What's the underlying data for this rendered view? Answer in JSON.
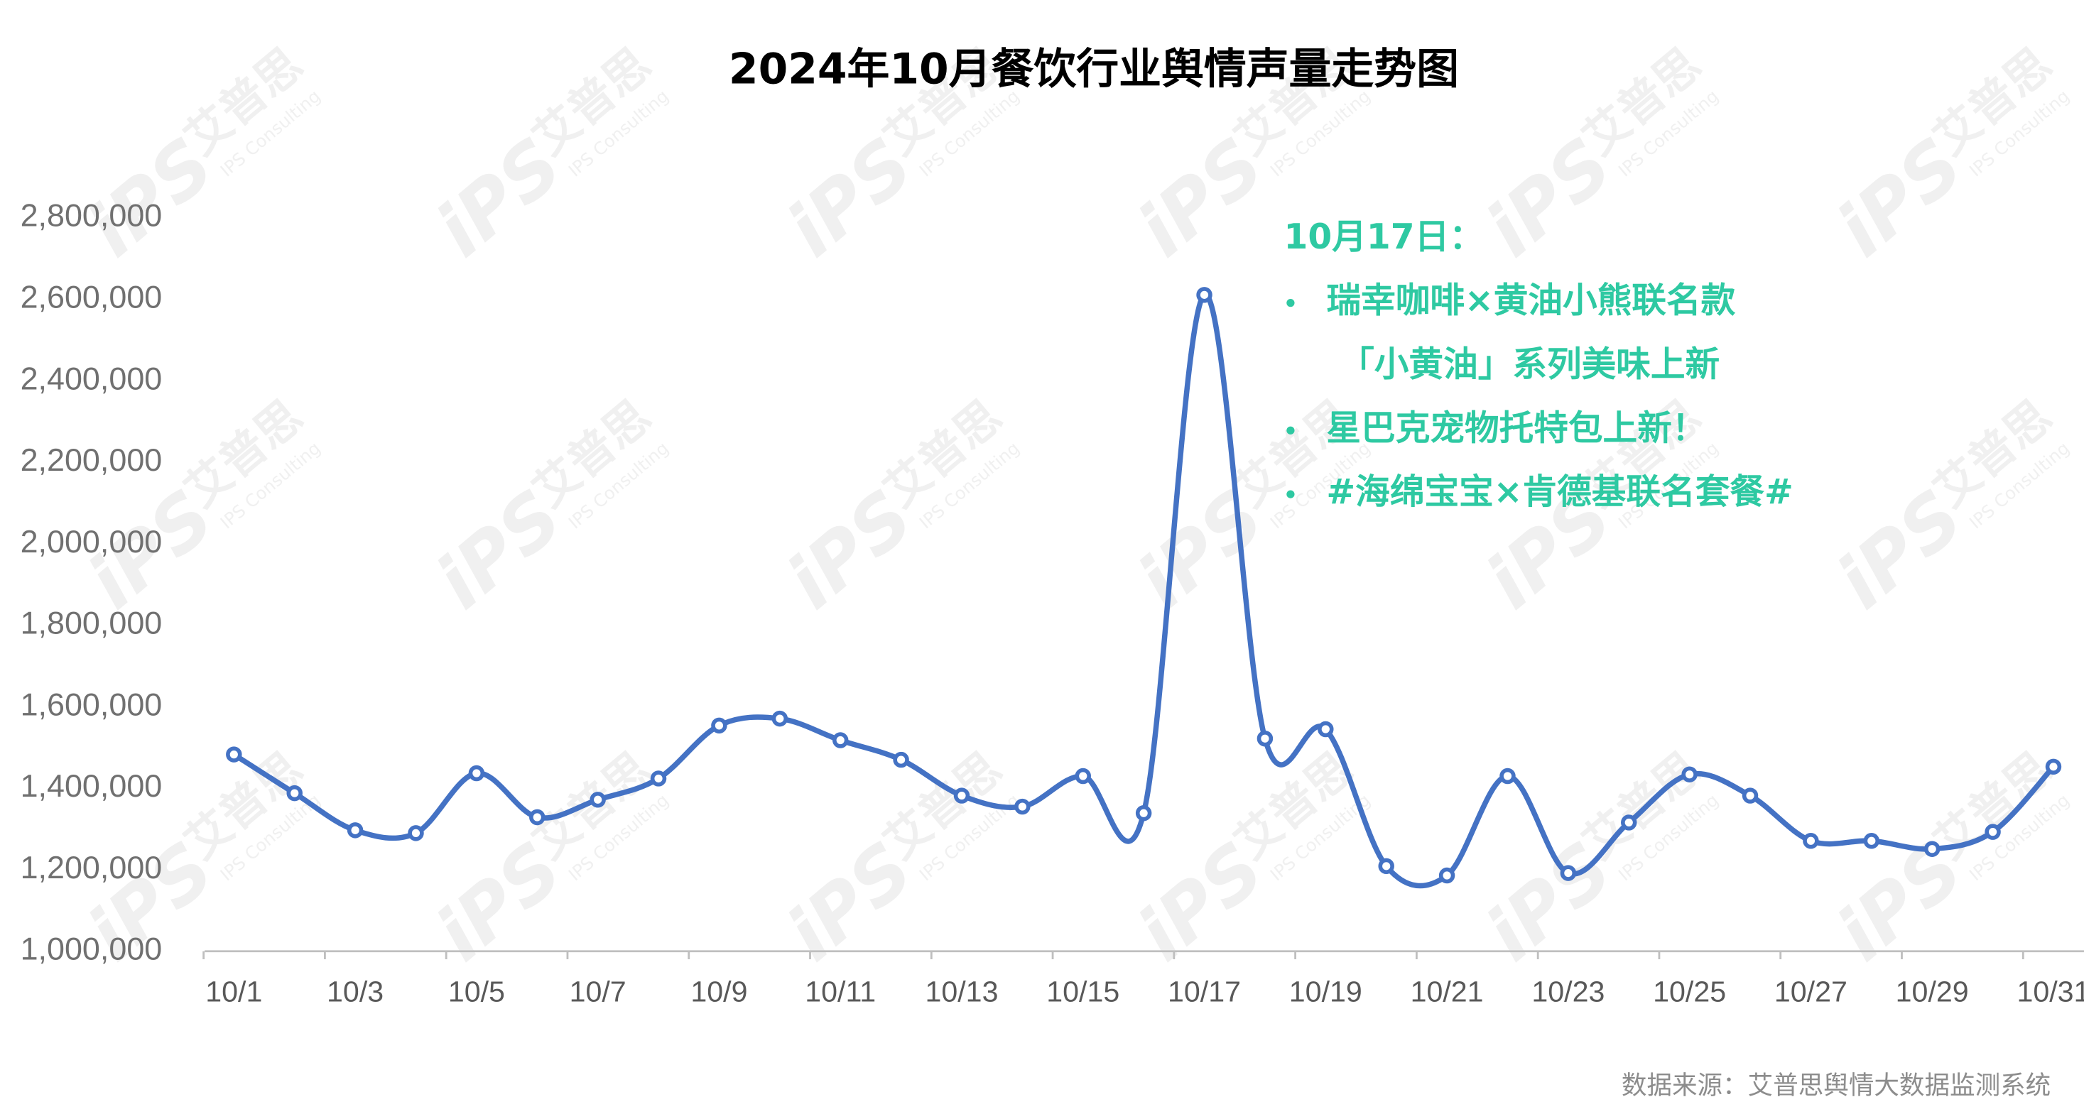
{
  "chart_data": {
    "type": "line",
    "title": "2024年10月餐饮行业舆情声量走势图",
    "categories": [
      "10/1",
      null,
      "10/3",
      null,
      "10/5",
      null,
      "10/7",
      null,
      "10/9",
      null,
      "10/11",
      null,
      "10/13",
      null,
      "10/15",
      null,
      "10/17",
      null,
      "10/19",
      null,
      "10/21",
      null,
      "10/23",
      null,
      "10/25",
      null,
      "10/27",
      null,
      "10/29",
      null,
      "10/31"
    ],
    "series": [
      {
        "name": "舆情声量",
        "color": "#4472c4",
        "values": [
          1483000,
          1388000,
          1297000,
          1290000,
          1437000,
          1329000,
          1372000,
          1424000,
          1554000,
          1571000,
          1518000,
          1470000,
          1382000,
          1355000,
          1430000,
          1339000,
          2611000,
          1522000,
          1545000,
          1209000,
          1186000,
          1430000,
          1192000,
          1316000,
          1434000,
          1382000,
          1271000,
          1271000,
          1251000,
          1293000,
          1453000
        ]
      }
    ],
    "ylim": [
      1000000,
      2800000
    ],
    "yticks": [
      {
        "value": 1000000,
        "label": "1,000,000"
      },
      {
        "value": 1200000,
        "label": "1,200,000"
      },
      {
        "value": 1400000,
        "label": "1,400,000"
      },
      {
        "value": 1600000,
        "label": "1,600,000"
      },
      {
        "value": 1800000,
        "label": "1,800,000"
      },
      {
        "value": 2000000,
        "label": "2,000,000"
      },
      {
        "value": 2200000,
        "label": "2,200,000"
      },
      {
        "value": 2400000,
        "label": "2,400,000"
      },
      {
        "value": 2600000,
        "label": "2,600,000"
      },
      {
        "value": 2800000,
        "label": "2,800,000"
      }
    ],
    "grid": false,
    "annotation": {
      "title": "10月17日：",
      "color": "#2ec9a2",
      "items": [
        {
          "lines": [
            "瑞幸咖啡×黄油小熊联名款",
            "「小黄油」系列美味上新"
          ]
        },
        {
          "lines": [
            "星巴克宠物托特包上新！"
          ]
        },
        {
          "lines": [
            "#海绵宝宝×肯德基联名套餐#"
          ]
        }
      ]
    },
    "source": "数据来源：艾普思舆情大数据监测系统",
    "watermark": {
      "logo": "iPS",
      "brand": "艾普思",
      "sub": "IPS Consulting"
    }
  }
}
